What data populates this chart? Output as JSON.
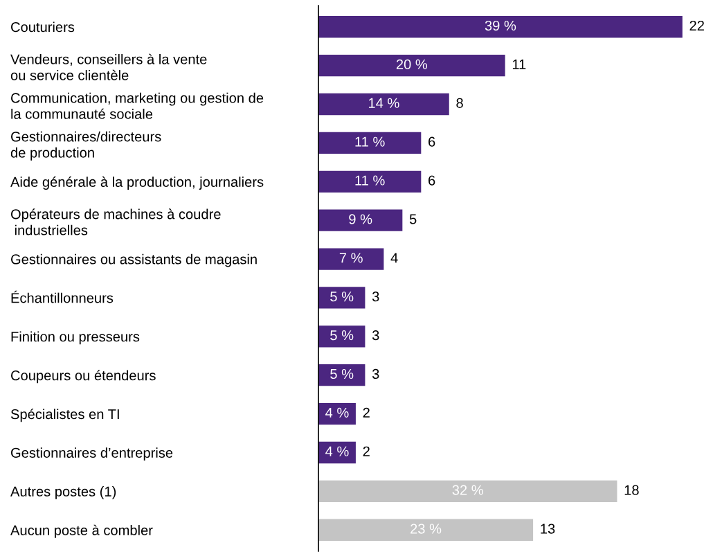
{
  "chart_data": {
    "type": "bar",
    "orientation": "horizontal",
    "categories": [
      "Couturiers",
      "Vendeurs, conseillers à la vente\nou service clientèle",
      "Communication, marketing ou gestion de\nla communauté sociale",
      "Gestionnaires/directeurs\nde production",
      "Aide générale à la production, journaliers",
      "Opérateurs de machines à coudre\n industrielles",
      "Gestionnaires ou assistants de magasin",
      "Échantillonneurs",
      "Finition ou presseurs",
      "Coupeurs ou étendeurs",
      "Spécialistes en TI",
      "Gestionnaires d’entreprise",
      "Autres postes (1)",
      "Aucun poste à combler"
    ],
    "values": [
      39,
      20,
      14,
      11,
      11,
      9,
      7,
      5,
      5,
      5,
      4,
      4,
      32,
      23
    ],
    "colors": [
      "#4b2680",
      "#4b2680",
      "#4b2680",
      "#4b2680",
      "#4b2680",
      "#4b2680",
      "#4b2680",
      "#4b2680",
      "#4b2680",
      "#4b2680",
      "#4b2680",
      "#4b2680",
      "#c4c4c4",
      "#c4c4c4"
    ],
    "value_labels": [
      "39 %",
      "20 %",
      "14 %",
      "11 %",
      "11 %",
      "9 %",
      "7 %",
      "5 %",
      "5 %",
      "5 %",
      "4 %",
      "4 %",
      "32 %",
      "23 %"
    ],
    "annotations": [
      {
        "text": "22",
        "x": 39,
        "y": "Couturiers"
      },
      {
        "text": "11",
        "x": 20,
        "y": "Vendeurs, conseillers à la vente\nou service clientèle"
      },
      {
        "text": "8",
        "x": 14,
        "y": "Communication, marketing ou gestion de\nla communauté sociale"
      },
      {
        "text": "6",
        "x": 11,
        "y": "Gestionnaires/directeurs\nde production"
      },
      {
        "text": "6",
        "x": 11,
        "y": "Aide générale à la production, journaliers"
      },
      {
        "text": "5",
        "x": 9,
        "y": "Opérateurs de machines à coudre\n industrielles"
      },
      {
        "text": "4",
        "x": 7,
        "y": "Gestionnaires ou assistants de magasin"
      },
      {
        "text": "3",
        "x": 5,
        "y": "Échantillonneurs"
      },
      {
        "text": "3",
        "x": 5,
        "y": "Finition ou presseurs"
      },
      {
        "text": "3",
        "x": 5,
        "y": "Coupeurs ou étendeurs"
      },
      {
        "text": "2",
        "x": 4,
        "y": "Spécialistes en TI"
      },
      {
        "text": "2",
        "x": 4,
        "y": "Gestionnaires d’entreprise"
      },
      {
        "text": "18",
        "x": 32,
        "y": "Autres postes (1)"
      },
      {
        "text": "13",
        "x": 23,
        "y": "Aucun poste à combler"
      }
    ],
    "tick_labels": "y"
  }
}
